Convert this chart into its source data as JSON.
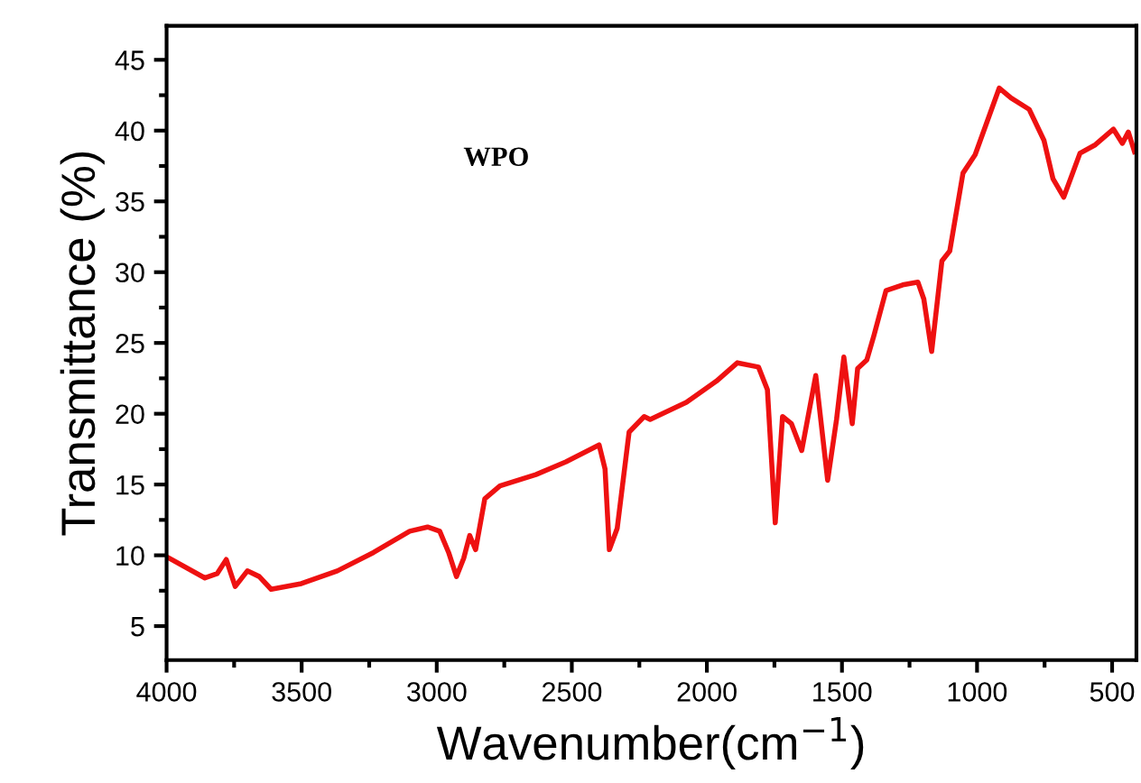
{
  "chart_data": {
    "type": "line",
    "xlabel": "Wavenumber(cm$^{−1}$)",
    "ylabel": "Transmittance (%)",
    "annotations": [
      "WPO"
    ],
    "xlim": [
      4000,
      410
    ],
    "ylim": [
      2.6,
      47.4
    ],
    "xticks": [
      4000,
      3500,
      3000,
      2500,
      2000,
      1500,
      1000,
      500
    ],
    "yticks": [
      5,
      10,
      15,
      20,
      25,
      30,
      35,
      40,
      45
    ],
    "grid": false,
    "marker": "none",
    "line_style": "solid",
    "series": [
      {
        "color": "#ee1111",
        "x": [
          3991,
          3858,
          3813,
          3779,
          3746,
          3701,
          3657,
          3613,
          3501,
          3368,
          3234,
          3100,
          3034,
          2989,
          2956,
          2927,
          2900,
          2878,
          2856,
          2822,
          2766,
          2633,
          2522,
          2399,
          2377,
          2361,
          2332,
          2288,
          2232,
          2210,
          2076,
          1965,
          1887,
          1809,
          1776,
          1747,
          1720,
          1687,
          1649,
          1597,
          1553,
          1520,
          1493,
          1462,
          1442,
          1408,
          1382,
          1337,
          1275,
          1219,
          1197,
          1168,
          1130,
          1101,
          1052,
          1007,
          918,
          874,
          807,
          752,
          719,
          679,
          619,
          562,
          495,
          462,
          440,
          417
        ],
        "values": [
          9.8,
          8.4,
          8.7,
          9.7,
          7.8,
          8.9,
          8.5,
          7.6,
          8.0,
          8.9,
          10.2,
          11.7,
          12.0,
          11.7,
          10.2,
          8.5,
          9.8,
          11.4,
          10.4,
          14.0,
          14.9,
          15.7,
          16.6,
          17.8,
          16.1,
          10.4,
          11.9,
          18.7,
          19.8,
          19.6,
          20.8,
          22.3,
          23.6,
          23.3,
          21.7,
          12.3,
          19.8,
          19.3,
          17.4,
          22.7,
          15.3,
          19.6,
          24.0,
          19.3,
          23.2,
          23.8,
          25.5,
          28.7,
          29.1,
          29.3,
          28.1,
          24.4,
          30.8,
          31.5,
          37.0,
          38.3,
          43.0,
          42.3,
          41.5,
          39.3,
          36.6,
          35.3,
          38.4,
          39.0,
          40.1,
          39.1,
          39.9,
          38.5
        ]
      }
    ]
  }
}
